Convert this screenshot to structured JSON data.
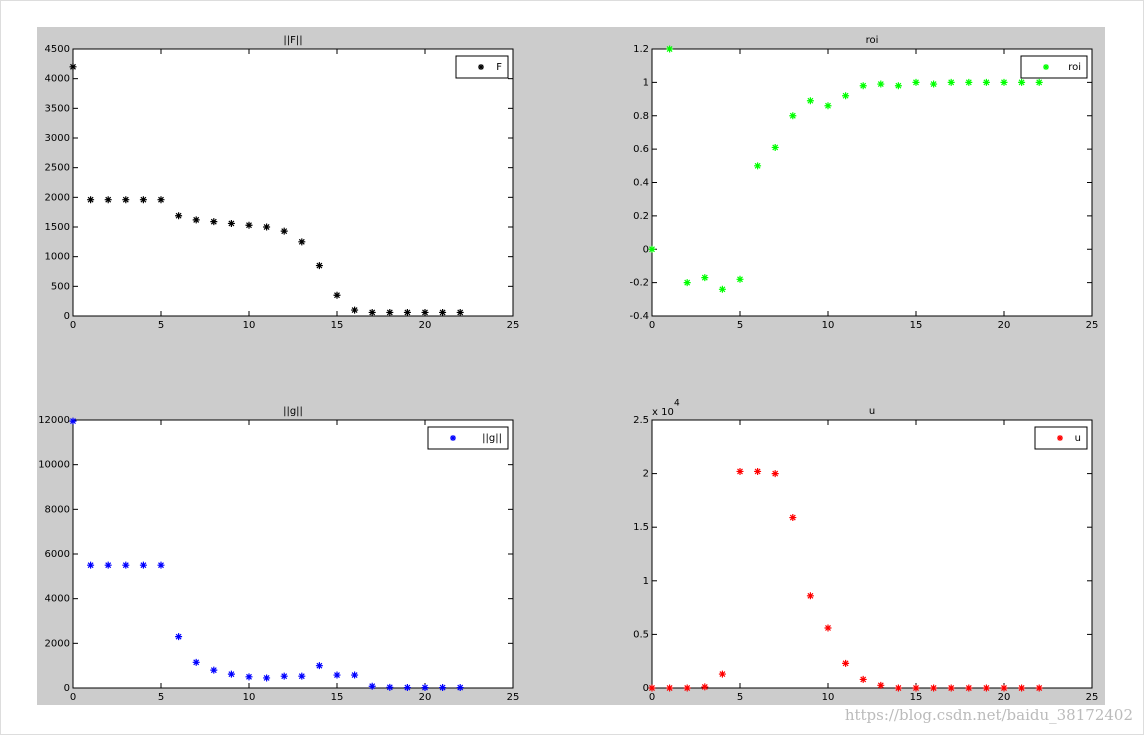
{
  "chart_data": [
    {
      "type": "scatter",
      "title": "||F||",
      "color": "#000000",
      "legend": "northeast",
      "marker": "*",
      "x": [
        0,
        1,
        2,
        3,
        4,
        5,
        6,
        7,
        8,
        9,
        10,
        11,
        12,
        13,
        14,
        15,
        16,
        17,
        18,
        19,
        20,
        21,
        22
      ],
      "series": [
        {
          "name": "F",
          "color": "#000000",
          "values": [
            4200,
            1960,
            1960,
            1960,
            1960,
            1960,
            1690,
            1620,
            1590,
            1560,
            1530,
            1500,
            1430,
            1250,
            850,
            350,
            100,
            60,
            60,
            60,
            60,
            60,
            60
          ]
        }
      ],
      "xlim": [
        0,
        25
      ],
      "xticks": [
        0,
        5,
        10,
        15,
        20,
        25
      ],
      "ylim": [
        0,
        4500
      ],
      "yticks": [
        0,
        500,
        1000,
        1500,
        2000,
        2500,
        3000,
        3500,
        4000,
        4500
      ]
    },
    {
      "type": "scatter",
      "title": "roi",
      "legend": "northeast",
      "marker": "*",
      "x": [
        0,
        1,
        2,
        3,
        4,
        5,
        6,
        7,
        8,
        9,
        10,
        11,
        12,
        13,
        14,
        15,
        16,
        17,
        18,
        19,
        20,
        21,
        22
      ],
      "series": [
        {
          "name": "roi",
          "color": "#00ff00",
          "values": [
            0,
            1.2,
            -0.2,
            -0.17,
            -0.24,
            -0.18,
            0.5,
            0.61,
            0.8,
            0.89,
            0.86,
            0.92,
            0.98,
            0.99,
            0.98,
            1.0,
            0.99,
            1.0,
            1.0,
            1.0,
            1.0,
            1.0,
            1.0
          ]
        }
      ],
      "xlim": [
        0,
        25
      ],
      "xticks": [
        0,
        5,
        10,
        15,
        20,
        25
      ],
      "ylim": [
        -0.4,
        1.2
      ],
      "yticks": [
        -0.4,
        -0.2,
        0,
        0.2,
        0.4,
        0.6,
        0.8,
        1,
        1.2
      ]
    },
    {
      "type": "scatter",
      "title": "||g||",
      "legend": "northeast",
      "marker": "*",
      "x": [
        0,
        1,
        2,
        3,
        4,
        5,
        6,
        7,
        8,
        9,
        10,
        11,
        12,
        13,
        14,
        15,
        16,
        17,
        18,
        19,
        20,
        21,
        22
      ],
      "series": [
        {
          "name": "||g||",
          "color": "#0000ff",
          "values": [
            11950,
            5500,
            5500,
            5500,
            5500,
            5500,
            2300,
            1150,
            800,
            620,
            500,
            450,
            530,
            530,
            1000,
            580,
            580,
            80,
            30,
            20,
            20,
            20,
            20
          ]
        }
      ],
      "xlim": [
        0,
        25
      ],
      "xticks": [
        0,
        5,
        10,
        15,
        20,
        25
      ],
      "ylim": [
        0,
        12000
      ],
      "yticks": [
        0,
        2000,
        4000,
        6000,
        8000,
        10000,
        12000
      ]
    },
    {
      "type": "scatter",
      "title": "u",
      "legend": "northeast",
      "marker": "*",
      "y_multiplier": {
        "base": "x 10",
        "exponent": "4"
      },
      "x": [
        0,
        1,
        2,
        3,
        4,
        5,
        6,
        7,
        8,
        9,
        10,
        11,
        12,
        13,
        14,
        15,
        16,
        17,
        18,
        19,
        20,
        21,
        22
      ],
      "series": [
        {
          "name": "u",
          "color": "#ff0000",
          "values": [
            0,
            0,
            0,
            0.01,
            0.13,
            2.02,
            2.02,
            2.0,
            1.59,
            0.86,
            0.56,
            0.23,
            0.08,
            0.025,
            0,
            0,
            0,
            0,
            0,
            0,
            0,
            0,
            0
          ]
        }
      ],
      "xlim": [
        0,
        25
      ],
      "xticks": [
        0,
        5,
        10,
        15,
        20,
        25
      ],
      "ylim": [
        0,
        2.5
      ],
      "yticks": [
        0,
        0.5,
        1,
        1.5,
        2,
        2.5
      ]
    }
  ],
  "watermark": "https://blog.csdn.net/baidu_38172402"
}
